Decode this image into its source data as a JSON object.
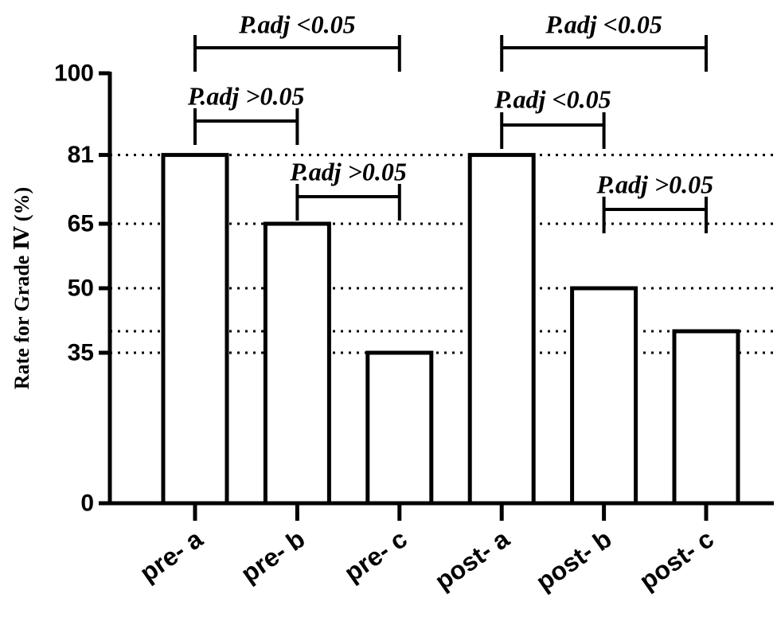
{
  "chart_data": {
    "type": "bar",
    "ylabel": "Rate for Grade Ⅳ (%)",
    "xlabel": "",
    "categories": [
      "pre- a",
      "pre- b",
      "pre- c",
      "post- a",
      "post- b",
      "post- c"
    ],
    "values": [
      81,
      65,
      35,
      81,
      50,
      40
    ],
    "ylim": [
      0,
      100
    ],
    "yticks": [
      0,
      35,
      50,
      65,
      81,
      100
    ],
    "ytick_labels": [
      "0",
      "35",
      "50",
      "65",
      "81",
      "100"
    ],
    "reference_lines": [
      81,
      65,
      50,
      40,
      35
    ],
    "reference_line_style": "dotted",
    "bar_fill": "#ffffff",
    "bar_stroke": "#000000",
    "comparisons": [
      {
        "from": 0,
        "to": 2,
        "label": "P.adj <0.05"
      },
      {
        "from": 0,
        "to": 1,
        "label": "P.adj >0.05"
      },
      {
        "from": 1,
        "to": 2,
        "label": "P.adj >0.05"
      },
      {
        "from": 3,
        "to": 5,
        "label": "P.adj <0.05"
      },
      {
        "from": 3,
        "to": 4,
        "label": "P.adj <0.05"
      },
      {
        "from": 4,
        "to": 5,
        "label": "P.adj >0.05"
      }
    ]
  }
}
